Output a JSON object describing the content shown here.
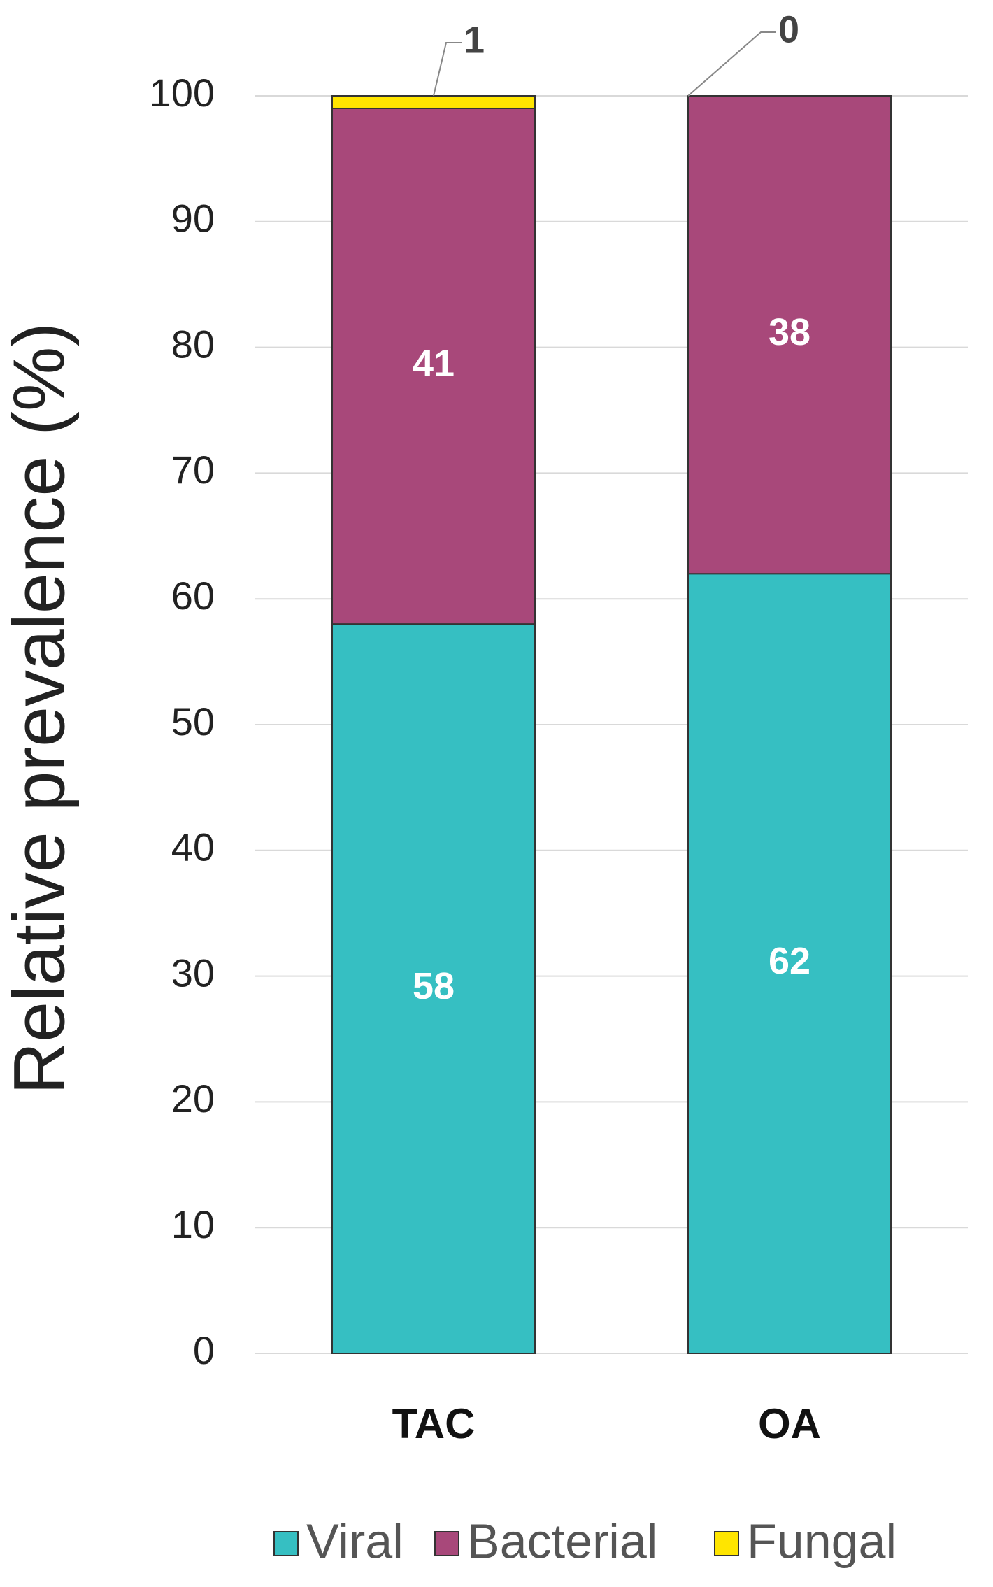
{
  "chart_data": {
    "type": "stacked_bar",
    "y_label": "Relative prevalence (%)",
    "categories": [
      "TAC",
      "OA"
    ],
    "series": [
      {
        "name": "Viral",
        "color": "#36bfc2",
        "values": [
          58,
          62
        ]
      },
      {
        "name": "Bacterial",
        "color": "#a8487a",
        "values": [
          41,
          38
        ]
      },
      {
        "name": "Fungal",
        "color": "#ffe500",
        "values": [
          1,
          0
        ]
      }
    ],
    "ylim": [
      0,
      100
    ],
    "yticks": [
      0,
      10,
      20,
      30,
      40,
      50,
      60,
      70,
      80,
      90,
      100
    ],
    "grid": true,
    "legend": "bottom"
  }
}
